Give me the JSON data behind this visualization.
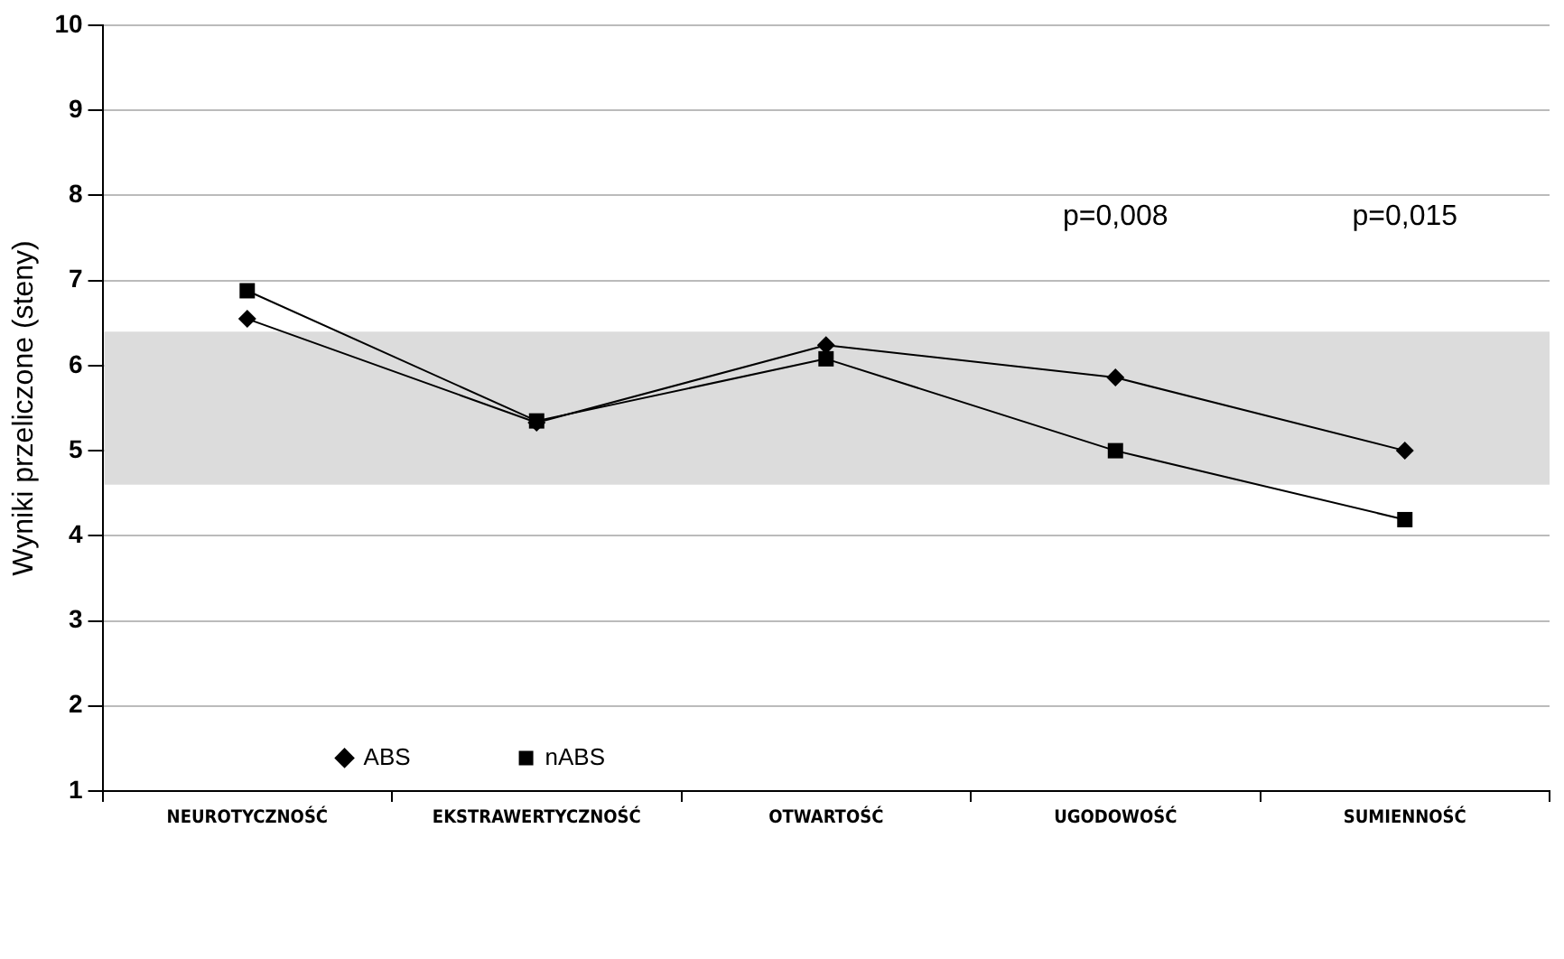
{
  "chart_data": {
    "type": "line",
    "ylabel": "Wyniki przeliczone (steny)",
    "categories": [
      "NEUROTYCZNOŚĆ",
      "EKSTRAWERTYCZNOŚĆ",
      "OTWARTOŚĆ",
      "UGODOWOŚĆ",
      "SUMIENNOŚĆ"
    ],
    "series": [
      {
        "name": "ABS",
        "color": "#000000",
        "marker": "diamond",
        "values": [
          6.55,
          5.33,
          6.24,
          5.86,
          5.0
        ]
      },
      {
        "name": "nABS",
        "color": "#000000",
        "marker": "square",
        "values": [
          6.88,
          5.35,
          6.08,
          5.0,
          4.19
        ]
      }
    ],
    "ylim": [
      1,
      10
    ],
    "yticks": [
      1,
      2,
      3,
      4,
      5,
      6,
      7,
      8,
      9,
      10
    ],
    "grid": "y",
    "legend": "bottom left",
    "bands": [
      {
        "axis": "y",
        "from": 4.6,
        "to": 6.4,
        "color": "#dcdcdc"
      }
    ],
    "annotations": [
      "p=0,008",
      "p=0,015"
    ]
  }
}
